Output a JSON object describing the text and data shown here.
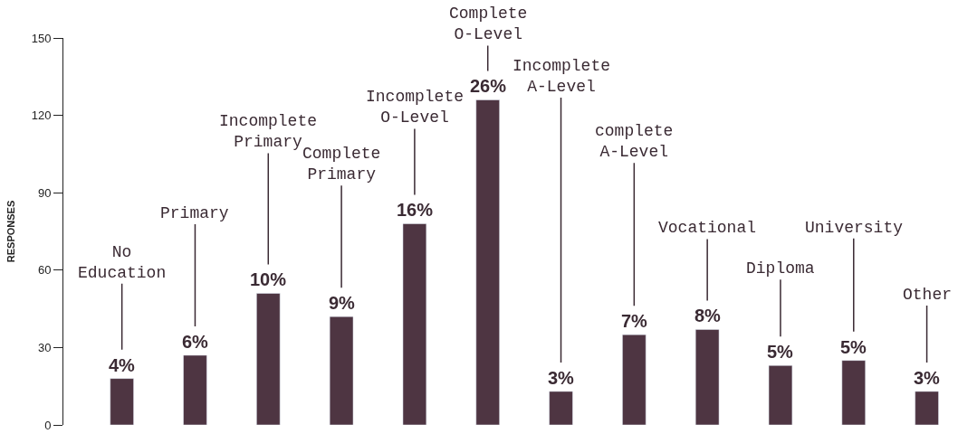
{
  "chart_data": {
    "type": "bar",
    "ylabel": "RESPONSES",
    "categories": [
      "No Education",
      "Primary",
      "Incomplete Primary",
      "Complete Primary",
      "Incomplete O-Level",
      "Complete O-Level",
      "Incomplete A-Level",
      "complete A-Level",
      "Vocational",
      "Diploma",
      "University",
      "Other"
    ],
    "values": [
      18,
      27,
      51,
      42,
      78,
      126,
      13,
      35,
      37,
      23,
      25,
      13
    ],
    "annotations": [
      {
        "text": "4%",
        "x": "No Education",
        "y": 18
      },
      {
        "text": "6%",
        "x": "Primary",
        "y": 27
      },
      {
        "text": "10%",
        "x": "Incomplete Primary",
        "y": 51
      },
      {
        "text": "9%",
        "x": "Complete Primary",
        "y": 42
      },
      {
        "text": "16%",
        "x": "Incomplete O-Level",
        "y": 78
      },
      {
        "text": "26%",
        "x": "Complete O-Level",
        "y": 126
      },
      {
        "text": "3%",
        "x": "Incomplete A-Level",
        "y": 13
      },
      {
        "text": "7%",
        "x": "complete A-Level",
        "y": 35
      },
      {
        "text": "8%",
        "x": "Vocational",
        "y": 37
      },
      {
        "text": "5%",
        "x": "Diploma",
        "y": 23
      },
      {
        "text": "5%",
        "x": "University",
        "y": 25
      },
      {
        "text": "3%",
        "x": "Other",
        "y": 13
      }
    ],
    "color": "#4e3542",
    "ylim": [
      0,
      150
    ],
    "yticks": [
      0,
      30,
      60,
      90,
      120,
      150
    ],
    "tick_labels": "y",
    "legend": false
  }
}
